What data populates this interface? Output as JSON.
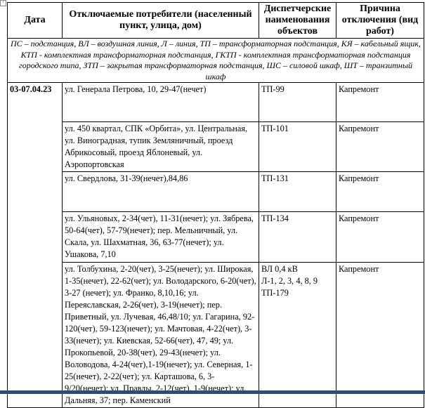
{
  "header": {
    "date": "Дата",
    "consumers": "Отключаемые потребители (населенный пункт, улица, дом)",
    "objects": "Диспетчерские наименования объектов",
    "reason": "Причина отключения (вид работ)"
  },
  "legend": "ПС – подстанция, ВЛ – воздушная линия, Л – линия, ТП – трансформаторная подстанция, КЯ – кабельный ящик, КТП - комплектная трансформаторная подстанция, ГКТП - комплектная трансформаторная подстанция городского типа, ЗТП – закрытая трансформаторная подстанция, ШС – силовой шкаф, ШТ – транзитный шкаф",
  "date": "03-07.04.23",
  "rows": [
    {
      "consumers": "ул. Генерала Петрова, 10, 29-47(нечет)",
      "objects": "ТП-99",
      "reason": "Капремонт"
    },
    {
      "consumers": "ул. 450 квартал, СПК «Орбита», ул. Центральная, ул. Виноградная, тупик Земляничный, проезд Абрикосовый, проезд Яблоневый, ул. Аэропортовская",
      "objects": "ТП-101",
      "reason": "Капремонт"
    },
    {
      "consumers": "ул. Свердлова, 31-39(нечет),84,86",
      "objects": "ТП-131",
      "reason": "Капремонт"
    },
    {
      "consumers": "ул. Ульяновых, 2-34(чет), 11-31(нечет); ул. Зябрева, 50-64(чет), 57-79(нечет); пер. Мельничный, ул. Скала, ул. Шахматная, 36, 63-77(нечет); ул. Ушакова, 7,10",
      "objects": "ТП-134",
      "reason": "Капремонт"
    },
    {
      "consumers": "ул. Толбухина, 2-20(чет), 3-25(нечет); ул. Широкая, 1-35(нечет), 22-62(чет); ул. Володарского, 6-20(чет), 3-27 (нечет); ул. Франко, 8,10,16; ул. Переяславская, 2-26(чет), 3-19(нечет); пер. Приветный, ул. Лучевая, 46,48/10; ул. Гагарина, 92-120(чет), 59-123(нечет); ул. Мачтовая, 4-22(чет), 3-33(нечет); ул. Киевская, 52-66(чет), 47, 49; ул. Прокопьевой, 20-38(чет), 29-43(нечет); ул. Воловодова, 4-24(чет),1-19(нечет); ул. Северная, 1-25(нечет), 2-22(чет); ул. Карташова, 6, 3-9/20(нечет); ул. Правды, 2-12(чет), 1-9(нечет); ул. Дальняя, 37; пер. Каменский",
      "objects_lines": [
        "ВЛ 0,4 кВ",
        "Л-1, 2, 3, 4, 8, 9",
        "ТП-179"
      ],
      "reason": "Капремонт"
    }
  ]
}
